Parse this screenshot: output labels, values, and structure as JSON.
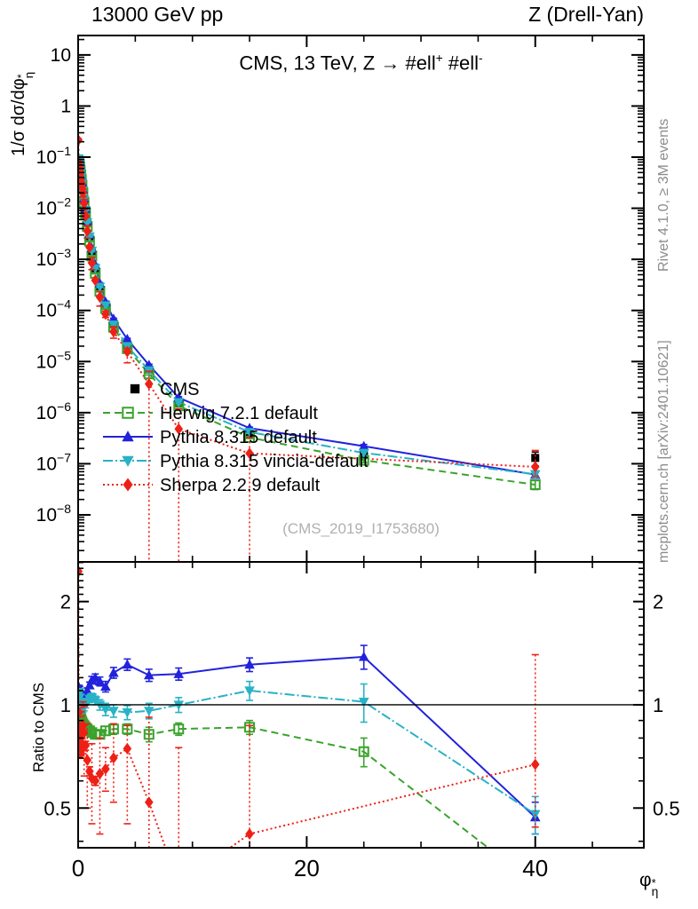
{
  "header": {
    "left": "13000 GeV pp",
    "right": "Z (Drell-Yan)"
  },
  "plot_title": {
    "pre": "CMS, 13 TeV, Z →  #ell",
    "sup1": "+",
    "mid": " #ell",
    "sup2": "-"
  },
  "watermark": "(CMS_2019_I1753680)",
  "side_texts": {
    "rivet": "Rivet 4.1.0, ≥ 3M events",
    "mcplots": "mcplots.cern.ch [arXiv:2401.10621]"
  },
  "axes": {
    "ylabel_top": {
      "main": "1/σ dσ/dφ",
      "sup": "*",
      "sub": "η"
    },
    "ylabel_ratio": "Ratio to CMS",
    "xlabel": {
      "base": "φ",
      "sup": "*",
      "sub": "η"
    }
  },
  "colors": {
    "cms": "#000000",
    "herwig": "#3aa32d",
    "pythia": "#2222dd",
    "vincia": "#28b2c6",
    "sherpa": "#ee2016",
    "gray_text": "#8c8c8c",
    "watermark": "#b0b0b0"
  },
  "chart_data": {
    "type": "line",
    "title": "CMS, 13 TeV, Z -> #ell+ #ell-",
    "xlabel": "phi*_eta",
    "ylabel_top": "1/sigma dsigma/dphi*_eta",
    "ylabel_ratio": "Ratio to CMS",
    "xlim": [
      0,
      49.5
    ],
    "ylim_top": [
      1.2e-09,
      24
    ],
    "ylim_ratio": [
      0.383,
      2.61
    ],
    "xticks_major": [
      0,
      20,
      40
    ],
    "xticks_minor": [
      5,
      10,
      15,
      25,
      30,
      35,
      45
    ],
    "yticks_top_exp": [
      1,
      0,
      -1,
      -2,
      -3,
      -4,
      -5,
      -6,
      -7,
      -8
    ],
    "yticks_ratio": [
      2,
      1,
      0.5
    ],
    "x": [
      0.02,
      0.06,
      0.1,
      0.14,
      0.18,
      0.23,
      0.28,
      0.34,
      0.42,
      0.52,
      0.65,
      0.8,
      1.0,
      1.2,
      1.5,
      1.9,
      2.4,
      3.1,
      4.3,
      6.2,
      8.8,
      15.0,
      25.0,
      40.0
    ],
    "cms": {
      "label": "CMS",
      "color": "#000000",
      "marker": "square-filled",
      "line": "none",
      "values": [
        0.088,
        0.083,
        0.077,
        0.069,
        0.06,
        0.05,
        0.041,
        0.032,
        0.023,
        0.015,
        0.0092,
        0.0052,
        0.0027,
        0.0014,
        0.00065,
        0.00029,
        0.00013,
        5.5e-05,
        2.1e-05,
        7e-06,
        1.6e-06,
        3.8e-07,
        1.6e-07,
        1.3e-07
      ],
      "err_rel": [
        0.02,
        0.02,
        0.02,
        0.02,
        0.02,
        0.02,
        0.02,
        0.02,
        0.02,
        0.02,
        0.02,
        0.02,
        0.03,
        0.03,
        0.03,
        0.04,
        0.04,
        0.05,
        0.06,
        0.08,
        0.09,
        0.12,
        0.18,
        0.3
      ]
    },
    "mc": [
      {
        "label": "Herwig 7.2.1 default",
        "color": "#3aa32d",
        "marker": "square-open",
        "line": "dash",
        "ratio": [
          0.93,
          0.94,
          0.94,
          0.93,
          0.92,
          0.91,
          0.9,
          0.89,
          0.88,
          0.87,
          0.86,
          0.85,
          0.84,
          0.83,
          0.82,
          0.82,
          0.84,
          0.85,
          0.85,
          0.82,
          0.85,
          0.86,
          0.73,
          0.3
        ],
        "ratio_err": [
          0.015,
          0.015,
          0.015,
          0.015,
          0.015,
          0.015,
          0.015,
          0.015,
          0.015,
          0.015,
          0.015,
          0.015,
          0.02,
          0.02,
          0.02,
          0.02,
          0.025,
          0.03,
          0.03,
          0.04,
          0.035,
          0.04,
          0.07,
          0.06
        ]
      },
      {
        "label": "Pythia 8.315 default",
        "color": "#2222dd",
        "marker": "triangle-up",
        "line": "solid",
        "ratio": [
          1.04,
          1.09,
          1.12,
          1.11,
          1.08,
          1.05,
          1.03,
          1.02,
          1.02,
          1.04,
          1.07,
          1.1,
          1.14,
          1.18,
          1.2,
          1.17,
          1.13,
          1.24,
          1.31,
          1.22,
          1.23,
          1.31,
          1.38,
          0.47
        ],
        "ratio_err": [
          0.02,
          0.02,
          0.02,
          0.02,
          0.02,
          0.02,
          0.02,
          0.02,
          0.02,
          0.02,
          0.02,
          0.02,
          0.025,
          0.03,
          0.03,
          0.035,
          0.04,
          0.045,
          0.05,
          0.05,
          0.05,
          0.06,
          0.11,
          0.05
        ]
      },
      {
        "label": "Pythia 8.315 vincia-default",
        "color": "#28b2c6",
        "marker": "triangle-down",
        "line": "dashdot",
        "ratio": [
          1.07,
          1.09,
          1.08,
          1.05,
          1.02,
          1.0,
          0.98,
          0.97,
          0.97,
          0.98,
          1.0,
          1.02,
          1.04,
          1.05,
          1.03,
          1.0,
          0.97,
          0.96,
          0.95,
          0.96,
          1.0,
          1.1,
          1.02,
          0.48
        ],
        "ratio_err": [
          0.02,
          0.02,
          0.02,
          0.02,
          0.02,
          0.02,
          0.02,
          0.02,
          0.02,
          0.02,
          0.02,
          0.02,
          0.025,
          0.03,
          0.03,
          0.035,
          0.04,
          0.04,
          0.045,
          0.05,
          0.05,
          0.07,
          0.13,
          0.06
        ]
      },
      {
        "label": "Sherpa 2.2.9 default",
        "color": "#ee2016",
        "marker": "diamond",
        "line": "dot",
        "ratio": [
          2.45,
          0.95,
          0.86,
          0.79,
          0.74,
          0.72,
          0.76,
          0.82,
          0.87,
          0.83,
          0.76,
          0.69,
          0.64,
          0.61,
          0.6,
          0.63,
          0.65,
          0.7,
          0.745,
          0.52,
          0.3,
          0.42,
          null,
          0.67
        ],
        "ratio_bounds": [
          [
            2.3,
            2.6
          ],
          null,
          null,
          null,
          null,
          null,
          null,
          null,
          [
            0.72,
            1.02
          ],
          [
            0.62,
            0.99
          ],
          null,
          [
            0.5,
            0.88
          ],
          null,
          [
            0.45,
            0.77
          ],
          null,
          [
            0.42,
            0.8
          ],
          [
            0.56,
            0.75
          ],
          [
            0.52,
            0.88
          ],
          [
            0.45,
            0.87
          ],
          [
            0.02,
            0.92
          ],
          [
            0.02,
            0.75
          ],
          [
            0.02,
            0.87
          ],
          null,
          [
            0.44,
            1.4
          ]
        ]
      }
    ]
  }
}
